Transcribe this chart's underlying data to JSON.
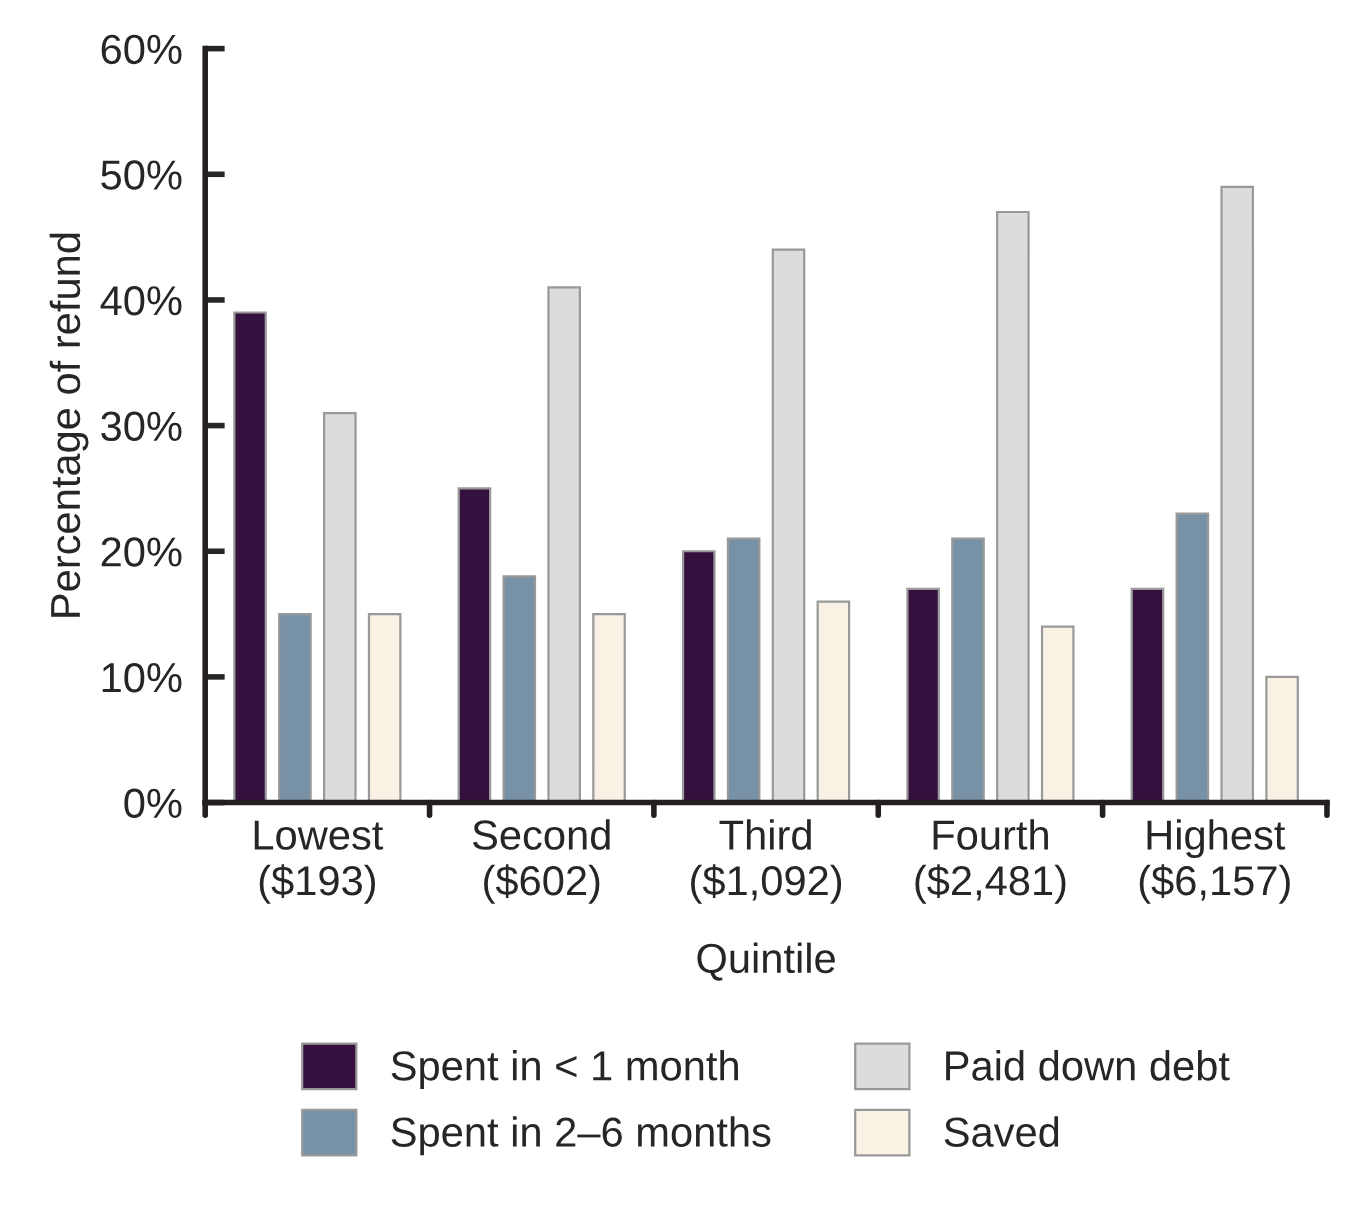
{
  "chart_data": {
    "type": "bar",
    "xlabel": "Quintile",
    "ylabel": "Percentage of refund",
    "categories": [
      "Lowest\n($193)",
      "Second\n($602)",
      "Third\n($1,092)",
      "Fourth\n($2,481)",
      "Highest\n($6,157)"
    ],
    "series": [
      {
        "name": "Spent in < 1 month",
        "color": "#33103d",
        "values": [
          39,
          25,
          20,
          17,
          17
        ]
      },
      {
        "name": "Spent in 2–6 months",
        "color": "#7792a6",
        "values": [
          15,
          18,
          21,
          21,
          23
        ]
      },
      {
        "name": "Paid down debt",
        "color": "#dcdcdc",
        "values": [
          31,
          41,
          44,
          47,
          49
        ]
      },
      {
        "name": "Saved",
        "color": "#f8f1e4",
        "values": [
          15,
          15,
          16,
          14,
          10
        ]
      }
    ],
    "ylim": [
      0,
      60
    ],
    "yticks": [
      {
        "value": 0,
        "label": "0%"
      },
      {
        "value": 10,
        "label": "10%"
      },
      {
        "value": 20,
        "label": "20%"
      },
      {
        "value": 30,
        "label": "30%"
      },
      {
        "value": 40,
        "label": "40%"
      },
      {
        "value": 50,
        "label": "50%"
      },
      {
        "value": 60,
        "label": "60%"
      }
    ],
    "grid": false,
    "legend": "bottom"
  }
}
